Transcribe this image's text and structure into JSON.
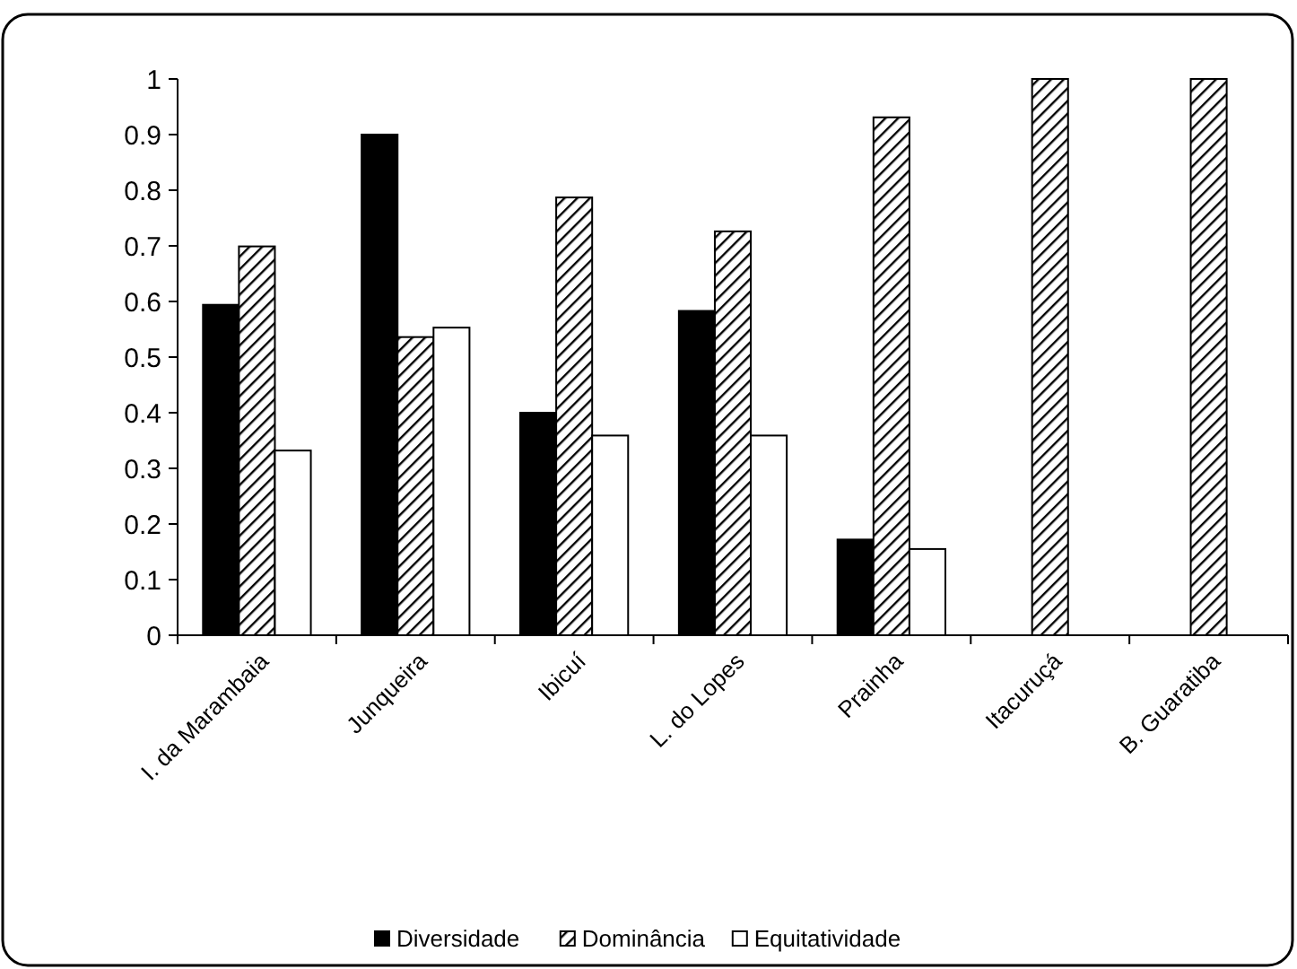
{
  "chart_data": {
    "type": "bar",
    "categories": [
      "I. da Marambaia",
      "Junqueira",
      "Ibicuí",
      "L. do Lopes",
      "Prainha",
      "Itacuruçá",
      "B. Guaratiba"
    ],
    "series": [
      {
        "name": "Diversidade",
        "color": "#000000",
        "values": [
          0.594,
          0.9,
          0.4,
          0.583,
          0.172,
          null,
          null
        ]
      },
      {
        "name": "Dominância",
        "color": "#000000",
        "values": [
          0.699,
          0.536,
          0.787,
          0.726,
          0.931,
          1,
          1
        ]
      },
      {
        "name": "Equitatividade",
        "color": "#ffffff",
        "values": [
          0.332,
          0.553,
          0.359,
          0.359,
          0.155,
          null,
          null
        ]
      }
    ],
    "ylim": [
      0,
      1
    ],
    "yticks": [
      0,
      0.1,
      0.2,
      0.3,
      0.4,
      0.5,
      0.6,
      0.7,
      0.8,
      0.9,
      1
    ],
    "grid": false,
    "legend": "bottom"
  }
}
